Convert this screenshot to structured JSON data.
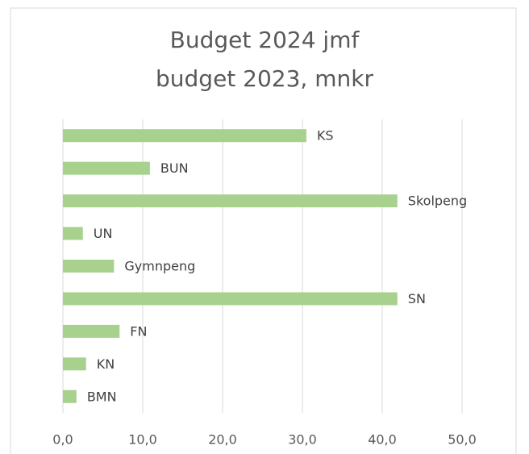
{
  "chart_data": {
    "type": "bar",
    "orientation": "horizontal",
    "title": [
      "Budget 2024 jmf",
      "budget 2023, mnkr"
    ],
    "categories": [
      "KS",
      "BUN",
      "Skolpeng",
      "UN",
      "Gymnpeng",
      "SN",
      "FN",
      "KN",
      "BMN"
    ],
    "values": [
      30.5,
      10.9,
      41.9,
      2.5,
      6.4,
      41.9,
      7.1,
      2.9,
      1.7
    ],
    "color": "#a9d18e",
    "xlim": [
      0,
      50
    ],
    "xticks": [
      {
        "value": 0,
        "label": "0,0"
      },
      {
        "value": 10,
        "label": "10,0"
      },
      {
        "value": 20,
        "label": "20,0"
      },
      {
        "value": 30,
        "label": "30,0"
      },
      {
        "value": 40,
        "label": "40,0"
      },
      {
        "value": 50,
        "label": "50,0"
      }
    ],
    "grid": true
  }
}
